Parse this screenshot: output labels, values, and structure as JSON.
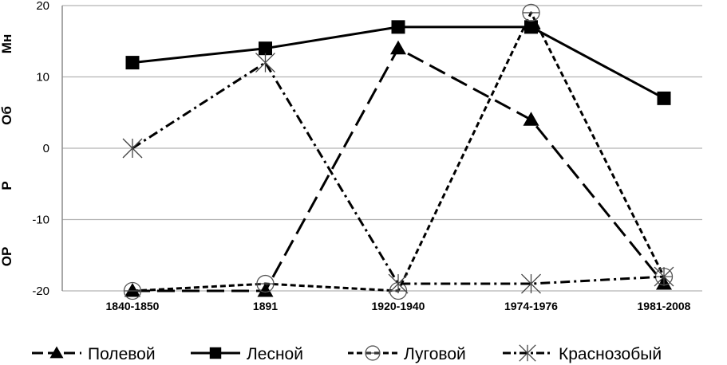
{
  "chart_data": {
    "type": "line",
    "categories": [
      "1840-1850",
      "1891",
      "1920-1940",
      "1974-1976",
      "1981-2008"
    ],
    "ylim": [
      -20,
      20
    ],
    "yticks": [
      -20,
      -10,
      0,
      10,
      20
    ],
    "grid": true,
    "legend_position": "bottom",
    "side_labels": [
      "Мн",
      "Об",
      "Р",
      "ОР"
    ],
    "series": [
      {
        "name": "Полевой",
        "values": [
          -20,
          -20,
          14,
          4,
          -19
        ],
        "color": "#000000",
        "marker": "triangle",
        "dash": "long-dash"
      },
      {
        "name": "Лесной",
        "values": [
          12,
          14,
          17,
          17,
          7
        ],
        "color": "#000000",
        "marker": "square",
        "dash": "solid"
      },
      {
        "name": "Луговой",
        "values": [
          -20,
          -19,
          -20,
          19,
          -18
        ],
        "color": "#000000",
        "marker": "circle-line",
        "dash": "short-dash"
      },
      {
        "name": "Краснозобый",
        "values": [
          0,
          12,
          -19,
          -19,
          -18
        ],
        "color": "#000000",
        "marker": "asterisk",
        "dash": "dash-dot"
      }
    ]
  }
}
